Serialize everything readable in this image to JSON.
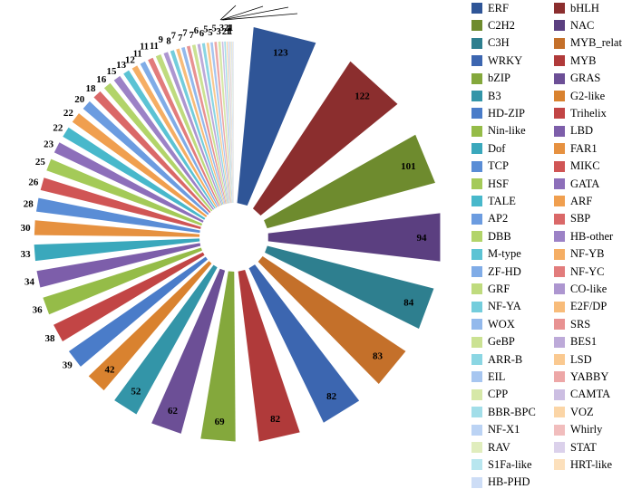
{
  "chart_data": {
    "type": "pie",
    "title": "",
    "legend_position": "right",
    "slices": [
      {
        "label": "ERF",
        "value": 123,
        "color": "#2F5597"
      },
      {
        "label": "bHLH",
        "value": 122,
        "color": "#8B2E2E"
      },
      {
        "label": "C2H2",
        "value": 101,
        "color": "#6E8B2E"
      },
      {
        "label": "NAC",
        "value": 94,
        "color": "#5B3F80"
      },
      {
        "label": "C3H",
        "value": 84,
        "color": "#2E7F8F"
      },
      {
        "label": "MYB_related",
        "value": 83,
        "color": "#C4702A"
      },
      {
        "label": "WRKY",
        "value": 82,
        "color": "#3C66B0"
      },
      {
        "label": "MYB",
        "value": 82,
        "color": "#B03A3A"
      },
      {
        "label": "bZIP",
        "value": 69,
        "color": "#84A83C"
      },
      {
        "label": "GRAS",
        "value": 62,
        "color": "#6C4F96"
      },
      {
        "label": "B3",
        "value": 52,
        "color": "#3395A8"
      },
      {
        "label": "G2-like",
        "value": 42,
        "color": "#D9822F"
      },
      {
        "label": "HD-ZIP",
        "value": 39,
        "color": "#4A7CC9"
      },
      {
        "label": "Trihelix",
        "value": 38,
        "color": "#C24545"
      },
      {
        "label": "Nin-like",
        "value": 36,
        "color": "#95BC48"
      },
      {
        "label": "LBD",
        "value": 34,
        "color": "#7D5EAA"
      },
      {
        "label": "Dof",
        "value": 33,
        "color": "#3AA8BC"
      },
      {
        "label": "FAR1",
        "value": 30,
        "color": "#E69140"
      },
      {
        "label": "TCP",
        "value": 28,
        "color": "#5A8DD6"
      },
      {
        "label": "MIKC",
        "value": 26,
        "color": "#D05555"
      },
      {
        "label": "HSF",
        "value": 25,
        "color": "#A4CA58"
      },
      {
        "label": "GATA",
        "value": 23,
        "color": "#8D6FBA"
      },
      {
        "label": "TALE",
        "value": 22,
        "color": "#48B8CB"
      },
      {
        "label": "ARF",
        "value": 22,
        "color": "#F09F4F"
      },
      {
        "label": "AP2",
        "value": 20,
        "color": "#6C9CE0"
      },
      {
        "label": "SBP",
        "value": 18,
        "color": "#DA6868"
      },
      {
        "label": "DBB",
        "value": 16,
        "color": "#B2D46A"
      },
      {
        "label": "HB-other",
        "value": 15,
        "color": "#9C82C6"
      },
      {
        "label": "M-type",
        "value": 13,
        "color": "#5CC3D4"
      },
      {
        "label": "NF-YB",
        "value": 12,
        "color": "#F5AE64"
      },
      {
        "label": "ZF-HD",
        "value": 11,
        "color": "#80ACE7"
      },
      {
        "label": "NF-YC",
        "value": 11,
        "color": "#E27C7C"
      },
      {
        "label": "GRF",
        "value": 11,
        "color": "#BFDB7E"
      },
      {
        "label": "CO-like",
        "value": 9,
        "color": "#AD96D0"
      },
      {
        "label": "NF-YA",
        "value": 8,
        "color": "#74CDDC"
      },
      {
        "label": "E2F/DP",
        "value": 7,
        "color": "#F8BC7A"
      },
      {
        "label": "WOX",
        "value": 7,
        "color": "#93B9EC"
      },
      {
        "label": "SRS",
        "value": 7,
        "color": "#E89292"
      },
      {
        "label": "GeBP",
        "value": 7,
        "color": "#CBE293"
      },
      {
        "label": "BES1",
        "value": 6,
        "color": "#BDAAD9"
      },
      {
        "label": "ARR-B",
        "value": 6,
        "color": "#8BD6E3"
      },
      {
        "label": "LSD",
        "value": 5,
        "color": "#FAC990"
      },
      {
        "label": "EIL",
        "value": 5,
        "color": "#A7C6F0"
      },
      {
        "label": "YABBY",
        "value": 5,
        "color": "#EDA7A7"
      },
      {
        "label": "CPP",
        "value": 5,
        "color": "#D6E8A8"
      },
      {
        "label": "CAMTA",
        "value": 3,
        "color": "#CCBEE2"
      },
      {
        "label": "BBR-BPC",
        "value": 3,
        "color": "#A2DEE9"
      },
      {
        "label": "VOZ",
        "value": 2,
        "color": "#FBD5A6"
      },
      {
        "label": "NF-X1",
        "value": 2,
        "color": "#BBD3F4"
      },
      {
        "label": "Whirly",
        "value": 1,
        "color": "#F1BDBD"
      },
      {
        "label": "RAV",
        "value": 1,
        "color": "#E0EDBD"
      },
      {
        "label": "STAT",
        "value": 1,
        "color": "#DBD1EB"
      },
      {
        "label": "S1Fa-like",
        "value": 1,
        "color": "#B8E6EF"
      },
      {
        "label": "HRT-like",
        "value": 1,
        "color": "#FCE0BC"
      },
      {
        "label": "HB-PHD",
        "value": 1,
        "color": "#CDDDF6"
      }
    ],
    "labels_shown": [
      "123",
      "122",
      "101",
      "94",
      "84",
      "83",
      "82",
      "82",
      "69",
      "62",
      "52",
      "42",
      "39",
      "38",
      "36",
      "34",
      "33",
      "30",
      "28",
      "26",
      "25",
      "23",
      "22",
      "22",
      "20",
      "18",
      "16",
      "15",
      "13",
      "12",
      "11",
      "11",
      "11",
      "9",
      "8",
      "7",
      "7",
      "7",
      "7",
      "6",
      "6",
      "5",
      "5",
      "5",
      "3",
      "3",
      "2",
      "2",
      "1",
      "1",
      "1",
      "1"
    ]
  }
}
